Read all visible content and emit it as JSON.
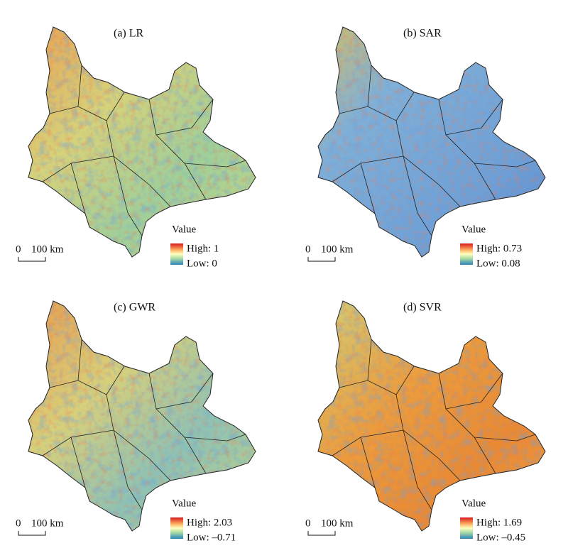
{
  "panels": [
    {
      "title": "(a) LR",
      "legend_title": "Value",
      "high": "High: 1",
      "low": "Low: 0",
      "scale_start": "0",
      "scale_end": "100 km"
    },
    {
      "title": "(b) SAR",
      "legend_title": "Value",
      "high": "High: 0.73",
      "low": "Low: 0.08",
      "scale_start": "0",
      "scale_end": "100 km"
    },
    {
      "title": "(c) GWR",
      "legend_title": "Value",
      "high": "High: 2.03",
      "low": "Low: –0.71",
      "scale_start": "0",
      "scale_end": "100 km"
    },
    {
      "title": "(d) SVR",
      "legend_title": "Value",
      "high": "High: 1.69",
      "low": "Low: –0.45",
      "scale_start": "0",
      "scale_end": "100 km"
    }
  ]
}
